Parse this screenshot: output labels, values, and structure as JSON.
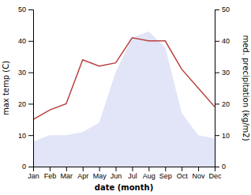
{
  "chart_data": {
    "type": "line",
    "x_label": "date (month)",
    "y_label": "max temp (C)",
    "y2_label": "med. precipitation (kg/m2)",
    "categories": [
      "Jan",
      "Feb",
      "Mar",
      "Apr",
      "May",
      "Jun",
      "Jul",
      "Aug",
      "Sep",
      "Oct",
      "Nov",
      "Dec"
    ],
    "series": [
      {
        "type": "area",
        "axis": "y2",
        "color": "#c8d0f0",
        "values": [
          8,
          10,
          10,
          11,
          14,
          30,
          41,
          43,
          38,
          17,
          10,
          9
        ]
      },
      {
        "type": "line",
        "color": "#b94040",
        "values": [
          15,
          18,
          20,
          34,
          32,
          33,
          41,
          40,
          40,
          31,
          25,
          19
        ]
      }
    ],
    "ylim": [
      0,
      50
    ],
    "yticks": [
      0,
      10,
      20,
      30,
      40,
      50
    ],
    "y2lim": [
      0,
      50
    ],
    "y2ticks": [
      0,
      10,
      20,
      30,
      40,
      50
    ],
    "grid": false
  }
}
